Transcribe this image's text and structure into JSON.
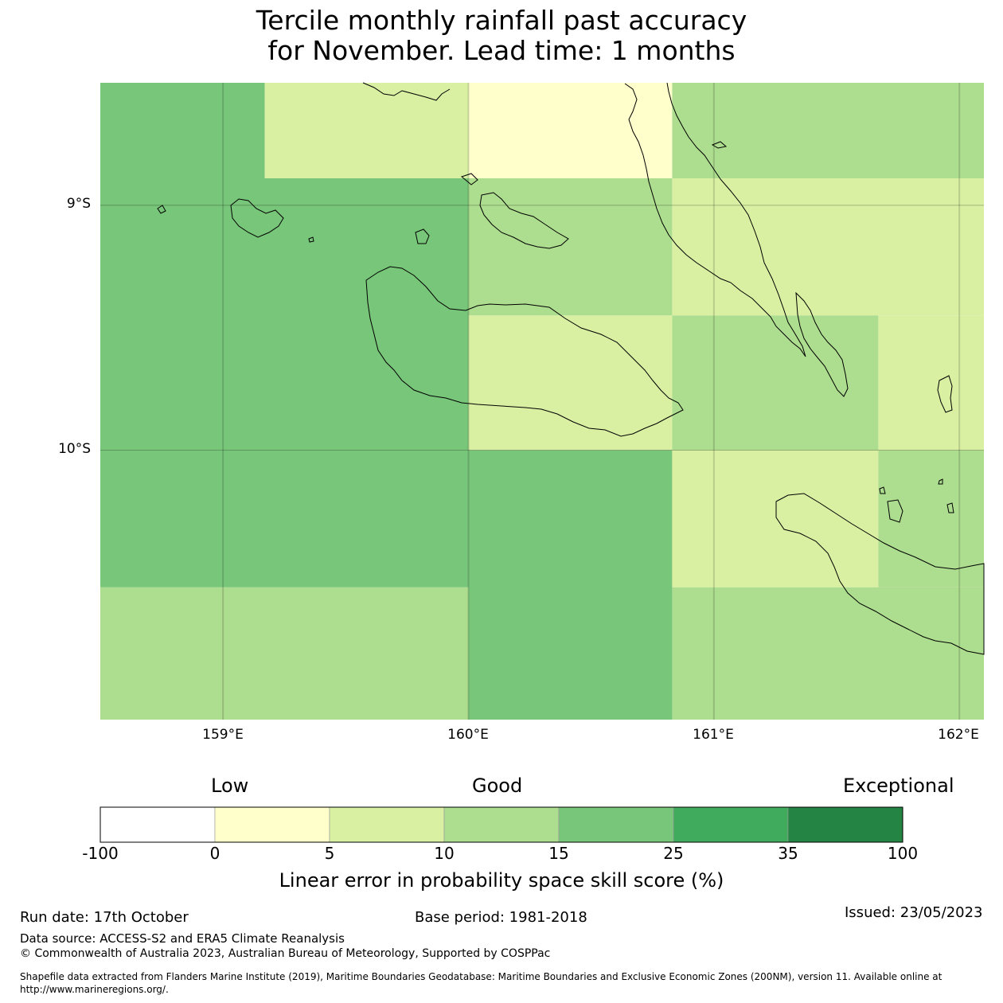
{
  "title": {
    "line1": "Tercile monthly rainfall past accuracy",
    "line2": "for November. Lead time: 1 months"
  },
  "map": {
    "lon_range": [
      158.5,
      162.1
    ],
    "lat_range": [
      -8.5,
      -11.1
    ],
    "lat_labels": [
      {
        "lat": -9,
        "text": "9°S"
      },
      {
        "lat": -10,
        "text": "10°S"
      }
    ],
    "lon_labels": [
      {
        "lon": 159,
        "text": "159°E"
      },
      {
        "lon": 160,
        "text": "160°E"
      },
      {
        "lon": 161,
        "text": "161°E"
      },
      {
        "lon": 162,
        "text": "162°E"
      }
    ],
    "grid_cells": [
      {
        "lon0": 158.5,
        "lon1": 159.17,
        "lat0": -8.5,
        "lat1": -8.89,
        "class": 4
      },
      {
        "lon0": 159.17,
        "lon1": 160.0,
        "lat0": -8.5,
        "lat1": -8.89,
        "class": 2
      },
      {
        "lon0": 160.0,
        "lon1": 160.83,
        "lat0": -8.5,
        "lat1": -8.89,
        "class": 1
      },
      {
        "lon0": 160.83,
        "lon1": 162.1,
        "lat0": -8.5,
        "lat1": -8.89,
        "class": 3
      },
      {
        "lon0": 158.5,
        "lon1": 160.0,
        "lat0": -8.89,
        "lat1": -10.0,
        "class": 4
      },
      {
        "lon0": 160.0,
        "lon1": 160.83,
        "lat0": -8.89,
        "lat1": -9.45,
        "class": 3
      },
      {
        "lon0": 160.83,
        "lon1": 162.1,
        "lat0": -8.89,
        "lat1": -9.45,
        "class": 2
      },
      {
        "lon0": 160.0,
        "lon1": 160.83,
        "lat0": -9.45,
        "lat1": -10.0,
        "class": 2
      },
      {
        "lon0": 160.83,
        "lon1": 161.67,
        "lat0": -9.45,
        "lat1": -10.0,
        "class": 3
      },
      {
        "lon0": 161.67,
        "lon1": 162.1,
        "lat0": -9.45,
        "lat1": -10.0,
        "class": 2
      },
      {
        "lon0": 158.5,
        "lon1": 160.0,
        "lat0": -10.0,
        "lat1": -10.56,
        "class": 4
      },
      {
        "lon0": 160.0,
        "lon1": 160.83,
        "lat0": -10.0,
        "lat1": -11.1,
        "class": 4
      },
      {
        "lon0": 160.83,
        "lon1": 161.67,
        "lat0": -10.0,
        "lat1": -10.56,
        "class": 2
      },
      {
        "lon0": 161.67,
        "lon1": 162.1,
        "lat0": -10.0,
        "lat1": -10.56,
        "class": 3
      },
      {
        "lon0": 158.5,
        "lon1": 160.0,
        "lat0": -10.56,
        "lat1": -11.1,
        "class": 3
      },
      {
        "lon0": 160.83,
        "lon1": 162.1,
        "lat0": -10.56,
        "lat1": -11.1,
        "class": 3
      }
    ]
  },
  "colorbar": {
    "category_labels": {
      "low": "Low",
      "good": "Good",
      "exceptional": "Exceptional"
    },
    "ticks": [
      "-100",
      "0",
      "5",
      "10",
      "15",
      "25",
      "35",
      "100"
    ],
    "colors": [
      "#ffffff",
      "#ffffcc",
      "#d9f0a3",
      "#addd8e",
      "#78c679",
      "#41ab5d",
      "#238443"
    ],
    "title": "Linear error in probability space skill score (%)"
  },
  "footer": {
    "run_date": "Run date: 17th October",
    "base_period": "Base period: 1981-2018",
    "issued": "Issued: 23/05/2023",
    "data_source": "Data source: ACCESS-S2 and ERA5 Climate Reanalysis",
    "copyright": "© Commonwealth of Australia 2023, Australian Bureau of Meteorology, Supported by COSPPac",
    "shapefile_line1": "Shapefile data extracted from Flanders Marine Institute (2019), Maritime Boundaries Geodatabase: Maritime Boundaries and Exclusive Economic Zones (200NM), version 11. Available online at",
    "shapefile_line2": "http://www.marineregions.org/."
  }
}
